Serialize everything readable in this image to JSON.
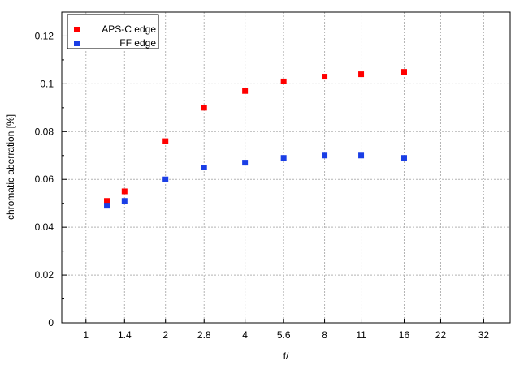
{
  "chart_data": {
    "type": "scatter",
    "title": "",
    "xlabel": "f/",
    "ylabel": "chromatic aberration [%]",
    "x_scale": "log",
    "xlim": [
      0.81,
      40.3
    ],
    "ylim": [
      0,
      0.13
    ],
    "x_ticks": [
      1,
      1.4,
      2,
      2.8,
      4,
      5.6,
      8,
      11,
      16,
      22,
      32
    ],
    "x_tick_labels": [
      "1",
      "1.4",
      "2",
      "2.8",
      "4",
      "5.6",
      "8",
      "11",
      "16",
      "22",
      "32"
    ],
    "y_ticks": [
      0,
      0.02,
      0.04,
      0.06,
      0.08,
      0.1,
      0.12
    ],
    "y_tick_labels": [
      "0",
      "0.02",
      "0.04",
      "0.06",
      "0.08",
      "0.1",
      "0.12"
    ],
    "grid": true,
    "legend_placement": "top-left",
    "x": [
      1.2,
      1.4,
      2,
      2.8,
      4,
      5.6,
      8,
      11,
      16
    ],
    "series": [
      {
        "name": "APS-C edge",
        "color": "#ff0000",
        "values": [
          0.051,
          0.055,
          0.076,
          0.09,
          0.097,
          0.101,
          0.103,
          0.104,
          0.105
        ]
      },
      {
        "name": "FF edge",
        "color": "#1a3ee6",
        "values": [
          0.049,
          0.051,
          0.06,
          0.065,
          0.067,
          0.069,
          0.07,
          0.07,
          0.069
        ]
      }
    ]
  }
}
